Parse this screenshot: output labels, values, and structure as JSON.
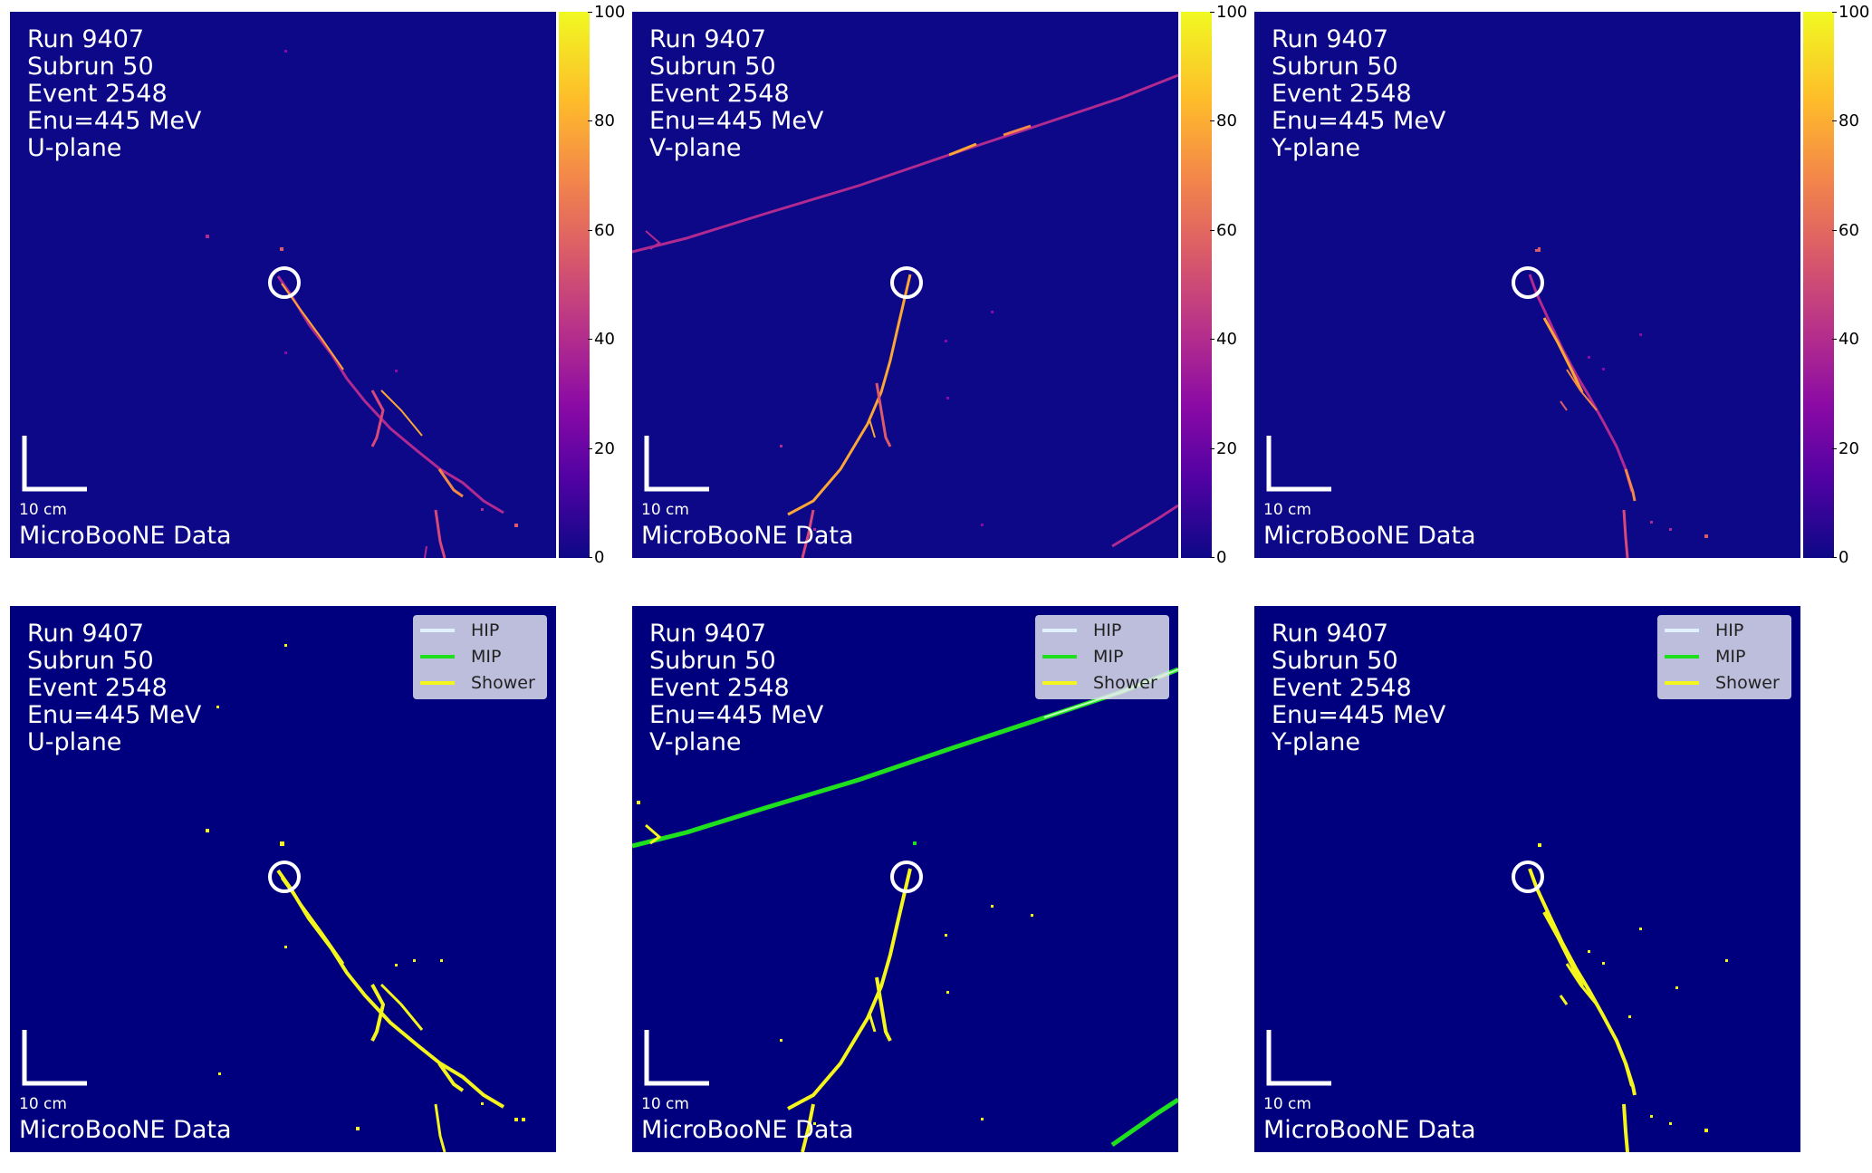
{
  "event_info": {
    "run": "Run 9407",
    "subrun": "Subrun 50",
    "event": "Event 2548",
    "energy": "Enu=445 MeV"
  },
  "scale_label": "10 cm",
  "credit": "MicroBooNE Data",
  "colorbar_ticks": [
    "100",
    "80",
    "60",
    "40",
    "20",
    "0"
  ],
  "legend": [
    {
      "label": "HIP",
      "color": "#dff0ff"
    },
    {
      "label": "MIP",
      "color": "#1ee01e"
    },
    {
      "label": "Shower",
      "color": "#f5f51e"
    }
  ],
  "panels": [
    {
      "plane": "U-plane",
      "kind": "charge"
    },
    {
      "plane": "V-plane",
      "kind": "charge"
    },
    {
      "plane": "Y-plane",
      "kind": "charge"
    },
    {
      "plane": "U-plane",
      "kind": "segmentation"
    },
    {
      "plane": "V-plane",
      "kind": "segmentation"
    },
    {
      "plane": "Y-plane",
      "kind": "segmentation"
    }
  ],
  "colors": {
    "charge_background": "#0d0887",
    "seg_background": "#00007f",
    "track_charge_low": "#b12a90",
    "track_charge_high": "#fca636",
    "shower": "#f5f51e",
    "mip": "#1ee01e"
  }
}
